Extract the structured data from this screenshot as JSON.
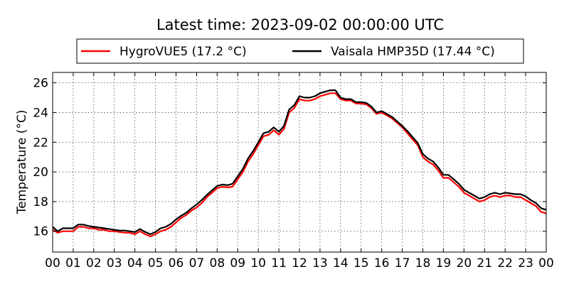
{
  "chart_data": {
    "type": "line",
    "title": "Latest time: 2023-09-02 00:00:00 UTC",
    "xlabel": "",
    "ylabel": "Temperature (°C)",
    "xlim": [
      0,
      24
    ],
    "ylim": [
      14.6,
      26.7
    ],
    "x_ticks": [
      0,
      1,
      2,
      3,
      4,
      5,
      6,
      7,
      8,
      9,
      10,
      11,
      12,
      13,
      14,
      15,
      16,
      17,
      18,
      19,
      20,
      21,
      22,
      23,
      24
    ],
    "x_tick_labels": [
      "00",
      "01",
      "02",
      "03",
      "04",
      "05",
      "06",
      "07",
      "08",
      "09",
      "10",
      "11",
      "12",
      "13",
      "14",
      "15",
      "16",
      "17",
      "18",
      "19",
      "20",
      "21",
      "22",
      "23",
      "00"
    ],
    "y_ticks": [
      16,
      18,
      20,
      22,
      24,
      26
    ],
    "y_tick_labels": [
      "16",
      "18",
      "20",
      "22",
      "24",
      "26"
    ],
    "grid": true,
    "legend_position": "top",
    "series": [
      {
        "name": "HygroVUE5 (17.2 °C)",
        "color": "#ff0000",
        "x": [
          0,
          0.25,
          0.5,
          0.75,
          1,
          1.25,
          1.5,
          1.75,
          2,
          2.25,
          2.5,
          2.75,
          3,
          3.25,
          3.5,
          3.75,
          4,
          4.25,
          4.5,
          4.75,
          5,
          5.25,
          5.5,
          5.75,
          6,
          6.25,
          6.5,
          6.75,
          7,
          7.25,
          7.5,
          7.75,
          8,
          8.25,
          8.5,
          8.75,
          9,
          9.25,
          9.5,
          9.75,
          10,
          10.25,
          10.5,
          10.75,
          11,
          11.25,
          11.5,
          11.75,
          12,
          12.25,
          12.5,
          12.75,
          13,
          13.25,
          13.5,
          13.75,
          14,
          14.25,
          14.5,
          14.75,
          15,
          15.25,
          15.5,
          15.75,
          16,
          16.25,
          16.5,
          16.75,
          17,
          17.25,
          17.5,
          17.75,
          18,
          18.25,
          18.5,
          18.75,
          19,
          19.25,
          19.5,
          19.75,
          20,
          20.25,
          20.5,
          20.75,
          21,
          21.25,
          21.5,
          21.75,
          22,
          22.25,
          22.5,
          22.75,
          23,
          23.25,
          23.5,
          23.75,
          24
        ],
        "values": [
          16.1,
          15.9,
          16.0,
          16.0,
          16.0,
          16.3,
          16.3,
          16.2,
          16.2,
          16.1,
          16.1,
          16.0,
          16.0,
          15.95,
          15.9,
          15.9,
          15.8,
          16.0,
          15.8,
          15.65,
          15.8,
          16.0,
          16.1,
          16.3,
          16.6,
          16.9,
          17.1,
          17.4,
          17.6,
          17.9,
          18.3,
          18.6,
          18.9,
          19.0,
          18.95,
          19.0,
          19.5,
          20.0,
          20.7,
          21.2,
          21.8,
          22.4,
          22.5,
          22.8,
          22.5,
          22.9,
          24.0,
          24.3,
          24.9,
          24.8,
          24.8,
          24.9,
          25.1,
          25.2,
          25.3,
          25.3,
          24.9,
          24.8,
          24.8,
          24.6,
          24.6,
          24.55,
          24.3,
          23.9,
          24.0,
          23.8,
          23.6,
          23.3,
          23.0,
          22.6,
          22.2,
          21.8,
          21.0,
          20.7,
          20.5,
          20.1,
          19.6,
          19.6,
          19.3,
          19.0,
          18.6,
          18.4,
          18.2,
          18.0,
          18.1,
          18.3,
          18.4,
          18.3,
          18.4,
          18.4,
          18.3,
          18.3,
          18.1,
          17.9,
          17.7,
          17.3,
          17.2
        ]
      },
      {
        "name": "Vaisala HMP35D (17.44 °C)",
        "color": "#000000",
        "x": [
          0,
          0.25,
          0.5,
          0.75,
          1,
          1.25,
          1.5,
          1.75,
          2,
          2.25,
          2.5,
          2.75,
          3,
          3.25,
          3.5,
          3.75,
          4,
          4.25,
          4.5,
          4.75,
          5,
          5.25,
          5.5,
          5.75,
          6,
          6.25,
          6.5,
          6.75,
          7,
          7.25,
          7.5,
          7.75,
          8,
          8.25,
          8.5,
          8.75,
          9,
          9.25,
          9.5,
          9.75,
          10,
          10.25,
          10.5,
          10.75,
          11,
          11.25,
          11.5,
          11.75,
          12,
          12.25,
          12.5,
          12.75,
          13,
          13.25,
          13.5,
          13.75,
          14,
          14.25,
          14.5,
          14.75,
          15,
          15.25,
          15.5,
          15.75,
          16,
          16.25,
          16.5,
          16.75,
          17,
          17.25,
          17.5,
          17.75,
          18,
          18.25,
          18.5,
          18.75,
          19,
          19.25,
          19.5,
          19.75,
          20,
          20.25,
          20.5,
          20.75,
          21,
          21.25,
          21.5,
          21.75,
          22,
          22.25,
          22.5,
          22.75,
          23,
          23.25,
          23.5,
          23.75,
          24
        ],
        "values": [
          16.3,
          16.0,
          16.2,
          16.2,
          16.2,
          16.45,
          16.45,
          16.35,
          16.3,
          16.25,
          16.2,
          16.15,
          16.1,
          16.05,
          16.05,
          16.0,
          15.95,
          16.15,
          15.95,
          15.8,
          15.95,
          16.2,
          16.3,
          16.5,
          16.8,
          17.05,
          17.25,
          17.55,
          17.8,
          18.1,
          18.45,
          18.75,
          19.05,
          19.15,
          19.1,
          19.2,
          19.7,
          20.2,
          20.9,
          21.4,
          22.0,
          22.6,
          22.7,
          23.0,
          22.7,
          23.1,
          24.2,
          24.5,
          25.1,
          25.0,
          25.0,
          25.1,
          25.3,
          25.4,
          25.5,
          25.5,
          25.0,
          24.9,
          24.9,
          24.7,
          24.7,
          24.65,
          24.4,
          24.0,
          24.1,
          23.9,
          23.7,
          23.4,
          23.1,
          22.75,
          22.35,
          21.95,
          21.2,
          20.9,
          20.7,
          20.3,
          19.8,
          19.8,
          19.5,
          19.2,
          18.8,
          18.6,
          18.4,
          18.2,
          18.3,
          18.5,
          18.6,
          18.5,
          18.6,
          18.55,
          18.5,
          18.5,
          18.35,
          18.1,
          17.9,
          17.55,
          17.44
        ]
      }
    ]
  }
}
